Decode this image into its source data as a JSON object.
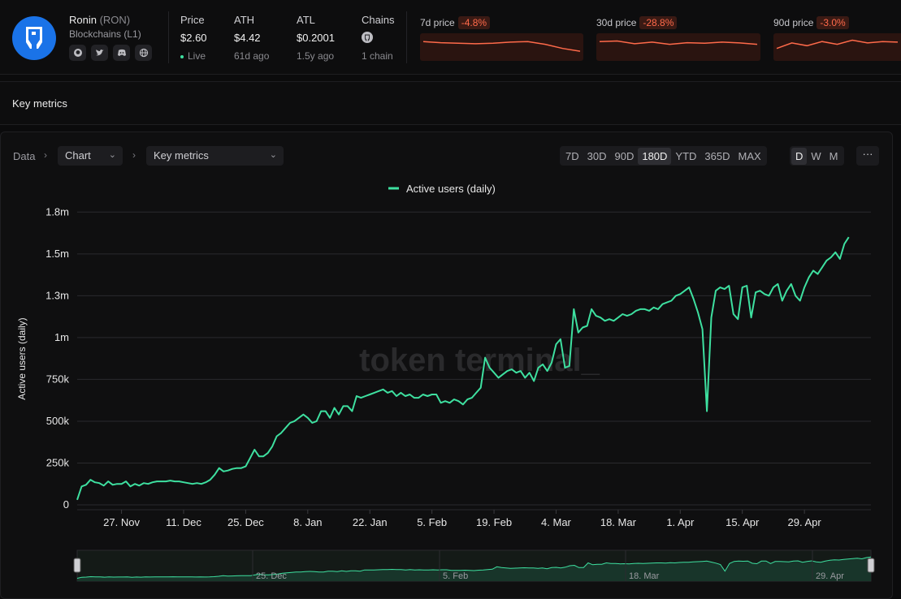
{
  "header": {
    "name": "Ronin",
    "ticker": "(RON)",
    "category": "Blockchains (L1)",
    "socials": [
      "github-icon",
      "twitter-icon",
      "discord-icon",
      "globe-icon"
    ],
    "stats": [
      {
        "label": "Price",
        "value": "$2.60",
        "sub": "Live"
      },
      {
        "label": "ATH",
        "value": "$4.42",
        "sub": "61d ago"
      },
      {
        "label": "ATL",
        "value": "$0.2001",
        "sub": "1.5y ago"
      },
      {
        "label": "Chains",
        "value": "",
        "sub": "1 chain"
      }
    ],
    "price_changes": [
      {
        "label": "7d price",
        "change": "-4.8%",
        "trend": [
          0.3,
          0.34,
          0.36,
          0.38,
          0.36,
          0.32,
          0.3,
          0.4,
          0.55,
          0.65
        ]
      },
      {
        "label": "30d price",
        "change": "-28.8%",
        "trend": [
          0.3,
          0.28,
          0.38,
          0.32,
          0.4,
          0.34,
          0.36,
          0.32,
          0.35,
          0.4
        ]
      },
      {
        "label": "90d price",
        "change": "-3.0%",
        "trend": [
          0.55,
          0.35,
          0.45,
          0.3,
          0.4,
          0.25,
          0.35,
          0.3,
          0.32
        ]
      }
    ],
    "accent_negative": "#ff6a4a"
  },
  "section": {
    "title": "Key metrics"
  },
  "toolbar": {
    "crumb": "Data",
    "view_select": "Chart",
    "metric_select": "Key metrics",
    "ranges": [
      "7D",
      "30D",
      "90D",
      "180D",
      "YTD",
      "365D",
      "MAX"
    ],
    "active_range": "180D",
    "granularity": [
      "D",
      "W",
      "M"
    ],
    "active_granularity": "D",
    "more_label": "···"
  },
  "watermark": "token terminal_",
  "chart_data": {
    "type": "line",
    "title": "",
    "legend": [
      "Active users (daily)"
    ],
    "legend_position": "top-center",
    "ylabel": "Active users (daily)",
    "ylim": [
      0,
      1800000
    ],
    "yticks": [
      0,
      250000,
      500000,
      750000,
      1000000,
      1250000,
      1500000,
      1750000
    ],
    "ytick_labels": [
      "0",
      "250k",
      "500k",
      "750k",
      "1m",
      "1.3m",
      "1.5m",
      "1.8m"
    ],
    "x_start": "2024-11-17",
    "xtick_labels": [
      "27. Nov",
      "11. Dec",
      "25. Dec",
      "8. Jan",
      "22. Jan",
      "5. Feb",
      "19. Feb",
      "4. Mar",
      "18. Mar",
      "1. Apr",
      "15. Apr",
      "29. Apr"
    ],
    "xtick_days": [
      10,
      24,
      38,
      52,
      66,
      80,
      94,
      108,
      122,
      136,
      150,
      164
    ],
    "x_days": 180,
    "line_color": "#3ee0a0",
    "grid": true,
    "navigator_labels": [
      "25. Dec",
      "5. Feb",
      "18. Mar",
      "29. Apr"
    ],
    "series": [
      {
        "name": "Active users (daily)",
        "values": [
          30000,
          110000,
          120000,
          150000,
          135000,
          130000,
          115000,
          140000,
          120000,
          125000,
          125000,
          140000,
          110000,
          125000,
          115000,
          130000,
          125000,
          135000,
          140000,
          140000,
          140000,
          145000,
          140000,
          140000,
          135000,
          130000,
          125000,
          130000,
          125000,
          135000,
          150000,
          180000,
          220000,
          200000,
          205000,
          215000,
          220000,
          220000,
          230000,
          280000,
          330000,
          290000,
          290000,
          310000,
          350000,
          410000,
          430000,
          460000,
          490000,
          500000,
          520000,
          540000,
          520000,
          490000,
          500000,
          560000,
          560000,
          520000,
          580000,
          540000,
          590000,
          590000,
          560000,
          650000,
          640000,
          650000,
          660000,
          670000,
          680000,
          690000,
          670000,
          680000,
          650000,
          670000,
          650000,
          660000,
          640000,
          640000,
          660000,
          650000,
          660000,
          660000,
          610000,
          620000,
          610000,
          630000,
          620000,
          600000,
          630000,
          640000,
          670000,
          700000,
          880000,
          820000,
          790000,
          760000,
          780000,
          800000,
          810000,
          790000,
          800000,
          760000,
          790000,
          740000,
          820000,
          840000,
          800000,
          850000,
          960000,
          990000,
          820000,
          830000,
          1170000,
          1030000,
          1060000,
          1070000,
          1170000,
          1130000,
          1120000,
          1100000,
          1110000,
          1100000,
          1120000,
          1140000,
          1130000,
          1140000,
          1160000,
          1170000,
          1170000,
          1160000,
          1180000,
          1170000,
          1200000,
          1210000,
          1220000,
          1250000,
          1260000,
          1280000,
          1300000,
          1230000,
          1150000,
          1050000,
          560000,
          1120000,
          1280000,
          1300000,
          1290000,
          1310000,
          1140000,
          1110000,
          1300000,
          1310000,
          1120000,
          1270000,
          1280000,
          1260000,
          1250000,
          1300000,
          1320000,
          1220000,
          1280000,
          1320000,
          1250000,
          1220000,
          1300000,
          1360000,
          1400000,
          1380000,
          1420000,
          1460000,
          1480000,
          1510000,
          1470000,
          1560000,
          1600000
        ]
      }
    ]
  }
}
